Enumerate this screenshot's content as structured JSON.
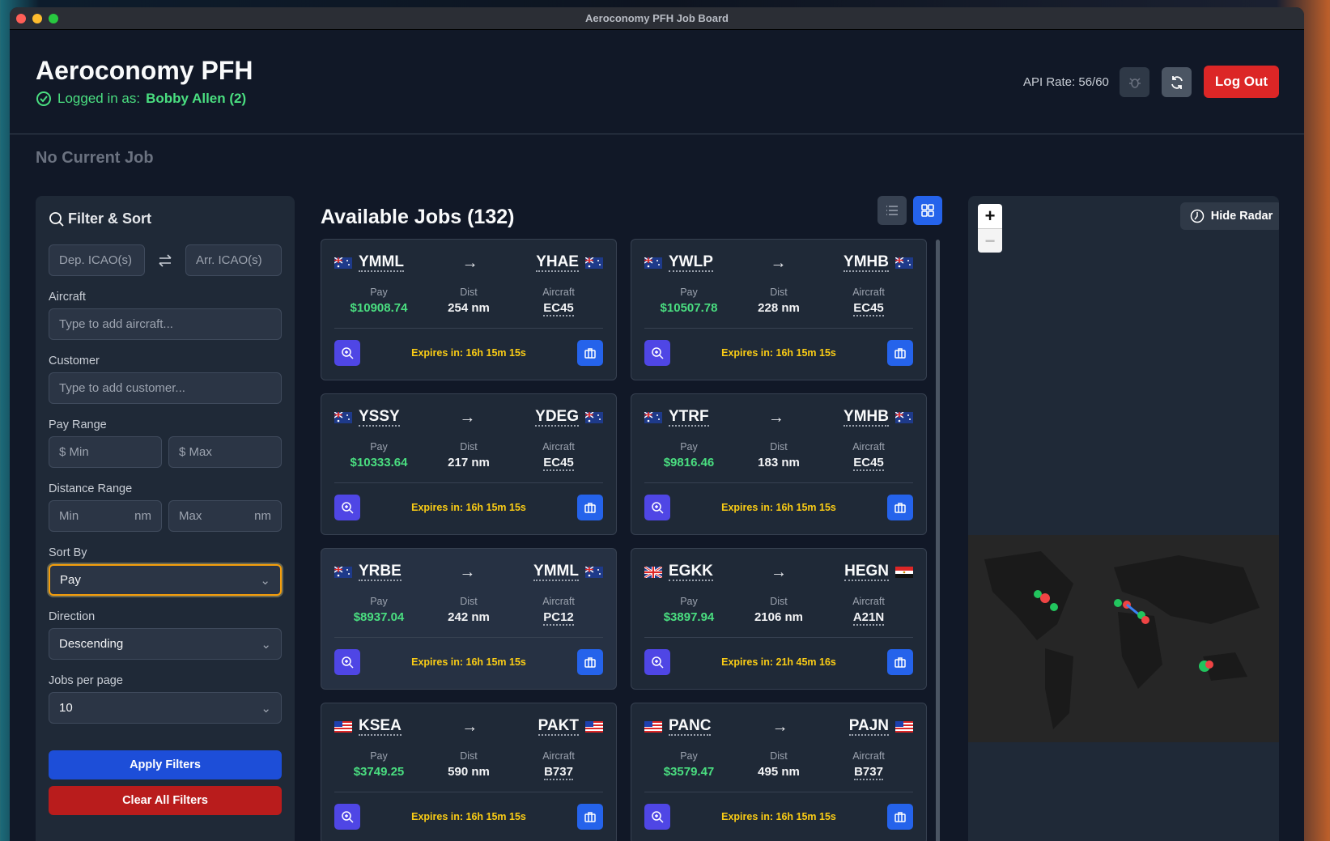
{
  "window": {
    "title": "Aeroconomy PFH Job Board"
  },
  "header": {
    "title": "Aeroconomy PFH",
    "login_prefix": "Logged in as:",
    "user": "Bobby Allen (2)",
    "api_rate": "API Rate: 56/60",
    "logout": "Log Out"
  },
  "current_job": "No Current Job",
  "filters": {
    "title": "Filter & Sort",
    "dep_placeholder": "Dep. ICAO(s)",
    "arr_placeholder": "Arr. ICAO(s)",
    "aircraft_label": "Aircraft",
    "aircraft_placeholder": "Type to add aircraft...",
    "customer_label": "Customer",
    "customer_placeholder": "Type to add customer...",
    "pay_label": "Pay Range",
    "pay_min": "$ Min",
    "pay_max": "$ Max",
    "distance_label": "Distance Range",
    "dist_min": "Min",
    "dist_max": "Max",
    "dist_unit": "nm",
    "sort_label": "Sort By",
    "sort_value": "Pay",
    "direction_label": "Direction",
    "direction_value": "Descending",
    "per_page_label": "Jobs per page",
    "per_page_value": "10",
    "apply": "Apply Filters",
    "clear": "Clear All Filters"
  },
  "jobs": {
    "title": "Available Jobs (132)",
    "labels": {
      "pay": "Pay",
      "dist": "Dist",
      "aircraft": "Aircraft",
      "expires": "Expires in:"
    },
    "items": [
      {
        "dep": "YMML",
        "arr": "YHAE",
        "pay": "$10908.74",
        "dist": "254 nm",
        "aircraft": "EC45",
        "expires": "16h 15m 15s"
      },
      {
        "dep": "YWLP",
        "arr": "YMHB",
        "pay": "$10507.78",
        "dist": "228 nm",
        "aircraft": "EC45",
        "expires": "16h 15m 15s"
      },
      {
        "dep": "YSSY",
        "arr": "YDEG",
        "pay": "$10333.64",
        "dist": "217 nm",
        "aircraft": "EC45",
        "expires": "16h 15m 15s"
      },
      {
        "dep": "YTRF",
        "arr": "YMHB",
        "pay": "$9816.46",
        "dist": "183 nm",
        "aircraft": "EC45",
        "expires": "16h 15m 15s"
      },
      {
        "dep": "YRBE",
        "arr": "YMML",
        "pay": "$8937.04",
        "dist": "242 nm",
        "aircraft": "PC12",
        "expires": "16h 15m 15s"
      },
      {
        "dep": "EGKK",
        "arr": "HEGN",
        "pay": "$3897.94",
        "dist": "2106 nm",
        "aircraft": "A21N",
        "expires": "21h 45m 16s"
      },
      {
        "dep": "KSEA",
        "arr": "PAKT",
        "pay": "$3749.25",
        "dist": "590 nm",
        "aircraft": "B737",
        "expires": "16h 15m 15s"
      },
      {
        "dep": "PANC",
        "arr": "PAJN",
        "pay": "$3579.47",
        "dist": "495 nm",
        "aircraft": "B737",
        "expires": "16h 15m 15s"
      }
    ]
  },
  "map": {
    "hide_radar": "Hide Radar",
    "zoom_in": "+",
    "zoom_out": "−"
  }
}
